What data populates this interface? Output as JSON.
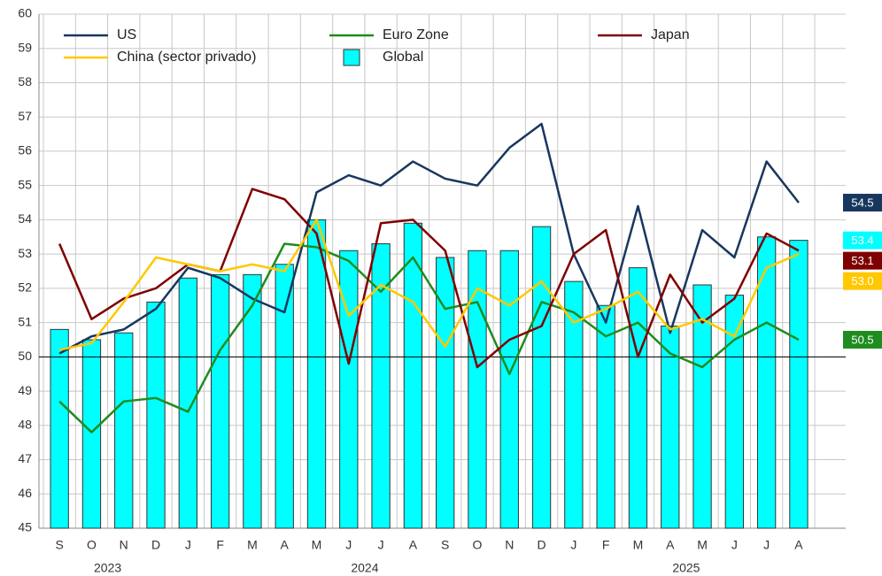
{
  "chart_data": {
    "type": "bar-line",
    "categories": [
      "S",
      "O",
      "N",
      "D",
      "J",
      "F",
      "M",
      "A",
      "M",
      "J",
      "J",
      "A",
      "S",
      "O",
      "N",
      "D",
      "J",
      "F",
      "M",
      "A",
      "M",
      "J",
      "J",
      "A"
    ],
    "year_labels": [
      {
        "label": "2023",
        "from": 0,
        "to": 3
      },
      {
        "label": "2024",
        "from": 4,
        "to": 15
      },
      {
        "label": "2025",
        "from": 16,
        "to": 23
      }
    ],
    "ylim": [
      45,
      60
    ],
    "yticks": [
      45,
      46,
      47,
      48,
      49,
      50,
      51,
      52,
      53,
      54,
      55,
      56,
      57,
      58,
      59,
      60
    ],
    "reference_line": 50,
    "grid": true,
    "series": [
      {
        "name": "US",
        "kind": "line",
        "color": "#17375e",
        "end_label": "54.5",
        "values": [
          50.1,
          50.6,
          50.8,
          51.4,
          52.6,
          52.3,
          51.7,
          51.3,
          54.8,
          55.3,
          55.0,
          55.7,
          55.2,
          55.0,
          56.1,
          56.8,
          53.0,
          51.0,
          54.4,
          50.7,
          53.7,
          52.9,
          55.7,
          54.5
        ]
      },
      {
        "name": "Euro Zone",
        "kind": "line",
        "color": "#1e8c1e",
        "end_label": "50.5",
        "values": [
          48.7,
          47.8,
          48.7,
          48.8,
          48.4,
          50.2,
          51.5,
          53.3,
          53.2,
          52.8,
          51.9,
          52.9,
          51.4,
          51.6,
          49.5,
          51.6,
          51.3,
          50.6,
          51.0,
          50.1,
          49.7,
          50.5,
          51.0,
          50.5
        ]
      },
      {
        "name": "Japan",
        "kind": "line",
        "color": "#7f0000",
        "end_label": "53.1",
        "values": [
          53.3,
          51.1,
          51.7,
          52.0,
          52.7,
          52.5,
          54.9,
          54.6,
          53.6,
          49.8,
          53.9,
          54.0,
          53.1,
          49.7,
          50.5,
          50.9,
          53.0,
          53.7,
          50.0,
          52.4,
          51.0,
          51.7,
          53.6,
          53.1
        ]
      },
      {
        "name": "China (sector privado)",
        "kind": "line",
        "color": "#ffc800",
        "end_label": "53.0",
        "values": [
          50.2,
          50.4,
          51.6,
          52.9,
          52.7,
          52.5,
          52.7,
          52.5,
          54.0,
          51.2,
          52.1,
          51.6,
          50.3,
          52.0,
          51.5,
          52.2,
          51.0,
          51.4,
          51.9,
          50.8,
          51.1,
          50.6,
          52.6,
          53.0
        ]
      },
      {
        "name": "Global",
        "kind": "bar",
        "color": "#00ffff",
        "end_label": "53.4",
        "values": [
          50.8,
          50.5,
          50.7,
          51.6,
          52.3,
          52.4,
          52.4,
          52.7,
          54.0,
          53.1,
          53.3,
          53.9,
          52.9,
          53.1,
          53.1,
          53.8,
          52.2,
          51.5,
          52.6,
          50.9,
          52.1,
          51.8,
          53.5,
          53.4
        ]
      }
    ]
  }
}
